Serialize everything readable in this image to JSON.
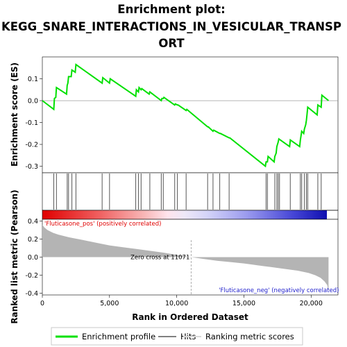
{
  "chart_data": [
    {
      "panel": "enrichment-profile",
      "type": "line",
      "title": "Enrichment plot:",
      "subtitle_lines": [
        "KEGG_SNARE_INTERACTIONS_IN_VESICULAR_TRANSP",
        "ORT"
      ],
      "ylabel": "Enrichment score (ES)",
      "ylim": [
        -0.33,
        0.2
      ],
      "xlim": [
        0,
        22000
      ],
      "yticks": [
        "0.1",
        "0.0",
        "-0.1",
        "-0.2",
        "-0.3"
      ],
      "ytick_values": [
        0.1,
        0.0,
        -0.1,
        -0.2,
        -0.3
      ],
      "series": [
        {
          "name": "Enrichment profile",
          "color": "#00e000",
          "x": [
            0,
            850,
            900,
            1000,
            1050,
            1800,
            1850,
            1900,
            1950,
            2150,
            2200,
            2450,
            2500,
            4450,
            4500,
            5000,
            5050,
            6950,
            7000,
            7150,
            7200,
            7350,
            7400,
            7950,
            8000,
            8850,
            8900,
            9000,
            9050,
            9850,
            9900,
            10050,
            10100,
            10700,
            10750,
            12300,
            12350,
            12700,
            12750,
            13200,
            13250,
            13900,
            13950,
            16600,
            16650,
            16750,
            16800,
            17250,
            17300,
            17400,
            17450,
            17550,
            17600,
            18400,
            18450,
            19150,
            19200,
            19250,
            19300,
            19450,
            19500,
            19600,
            19650,
            19700,
            19750,
            20450,
            20500,
            20750,
            20800,
            21100,
            21300
          ],
          "y": [
            0.0,
            -0.04,
            0.01,
            0.015,
            0.06,
            0.03,
            0.07,
            0.08,
            0.11,
            0.11,
            0.14,
            0.13,
            0.165,
            0.08,
            0.105,
            0.08,
            0.1,
            0.02,
            0.05,
            0.04,
            0.06,
            0.05,
            0.055,
            0.03,
            0.04,
            0.0,
            0.01,
            0.01,
            0.015,
            -0.02,
            -0.015,
            -0.02,
            -0.02,
            -0.045,
            -0.04,
            -0.12,
            -0.12,
            -0.14,
            -0.135,
            -0.15,
            -0.15,
            -0.17,
            -0.17,
            -0.3,
            -0.28,
            -0.28,
            -0.255,
            -0.28,
            -0.255,
            -0.24,
            -0.21,
            -0.19,
            -0.175,
            -0.21,
            -0.18,
            -0.21,
            -0.18,
            -0.16,
            -0.14,
            -0.15,
            -0.13,
            -0.11,
            -0.09,
            -0.06,
            -0.03,
            -0.065,
            -0.02,
            -0.03,
            0.025,
            0.01,
            0.0
          ]
        }
      ]
    },
    {
      "panel": "hits",
      "type": "scatter",
      "name": "Hits",
      "hit_ranks": [
        850,
        1050,
        1850,
        1950,
        2200,
        2500,
        4450,
        5000,
        6950,
        7150,
        7350,
        8000,
        8850,
        9000,
        9850,
        10050,
        10700,
        12300,
        12700,
        13200,
        13900,
        16650,
        16750,
        17300,
        17450,
        17550,
        17650,
        18450,
        19200,
        19300,
        19500,
        19650,
        19750,
        20500,
        20750
      ]
    },
    {
      "panel": "ranking-metric",
      "type": "area",
      "name": "Ranking metric scores",
      "ylabel": "Ranked list metric (Pearson)",
      "xlabel": "Rank in Ordered Dataset",
      "ylim": [
        -0.42,
        0.42
      ],
      "xlim": [
        0,
        22000
      ],
      "yticks": [
        "0.4",
        "0.2",
        "0.0",
        "-0.2",
        "-0.4"
      ],
      "ytick_values": [
        0.4,
        0.2,
        0.0,
        -0.2,
        -0.4
      ],
      "xticks": [
        "0",
        "5,000",
        "10,000",
        "15,000",
        "20,000"
      ],
      "xtick_values": [
        0,
        5000,
        10000,
        15000,
        20000
      ],
      "x": [
        0,
        150,
        400,
        800,
        1200,
        2000,
        3000,
        4000,
        5000,
        6000,
        7000,
        8000,
        9000,
        10000,
        11071,
        12000,
        13000,
        14000,
        15000,
        16000,
        17000,
        18000,
        19000,
        19800,
        20300,
        20700,
        21000,
        21200,
        21300
      ],
      "values": [
        0.36,
        0.33,
        0.3,
        0.27,
        0.25,
        0.22,
        0.19,
        0.16,
        0.13,
        0.11,
        0.09,
        0.07,
        0.05,
        0.025,
        0.0,
        -0.02,
        -0.04,
        -0.055,
        -0.07,
        -0.09,
        -0.11,
        -0.13,
        -0.15,
        -0.175,
        -0.2,
        -0.23,
        -0.27,
        -0.31,
        -0.38
      ],
      "zero_cross_label": "Zero cross at 11071",
      "zero_cross_rank": 11071,
      "pos_label": "'Fluticasone_pos' (positively correlated)",
      "neg_label": "'Fluticasone_neg' (negatively correlated)",
      "colors": {
        "fill": "#b4b4b4",
        "pos_text": "#e00000",
        "neg_text": "#2222cc"
      }
    }
  ],
  "legend": {
    "items": [
      {
        "label": "Enrichment profile",
        "color": "#00e000"
      },
      {
        "label": "Hits",
        "color": "#808080"
      },
      {
        "label": "Ranking metric scores",
        "color": "#c8c8c8"
      }
    ]
  }
}
